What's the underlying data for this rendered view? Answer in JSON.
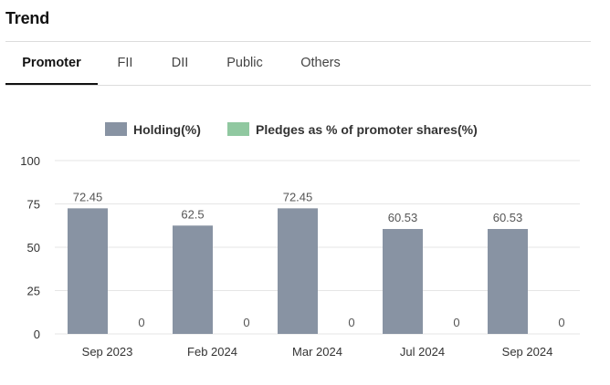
{
  "header": {
    "title": "Trend"
  },
  "tabs": [
    {
      "label": "Promoter",
      "active": true
    },
    {
      "label": "FII",
      "active": false
    },
    {
      "label": "DII",
      "active": false
    },
    {
      "label": "Public",
      "active": false
    },
    {
      "label": "Others",
      "active": false
    }
  ],
  "colors": {
    "holding": "#8893a3",
    "pledges": "#90c8a0",
    "grid": "#e6e6e6"
  },
  "chart_data": {
    "type": "bar",
    "categories": [
      "Sep 2023",
      "Feb 2024",
      "Mar 2024",
      "Jul 2024",
      "Sep 2024"
    ],
    "series": [
      {
        "name": "Holding(%)",
        "values": [
          72.45,
          62.5,
          72.45,
          60.53,
          60.53
        ]
      },
      {
        "name": "Pledges as % of promoter shares(%)",
        "values": [
          0,
          0,
          0,
          0,
          0
        ]
      }
    ],
    "data_labels": [
      [
        "72.45",
        "62.5",
        "72.45",
        "60.53",
        "60.53"
      ],
      [
        "0",
        "0",
        "0",
        "0",
        "0"
      ]
    ],
    "ylim": [
      0,
      100
    ],
    "yticks": [
      0,
      25,
      50,
      75,
      100
    ],
    "grid": true,
    "legend": "top-center"
  }
}
